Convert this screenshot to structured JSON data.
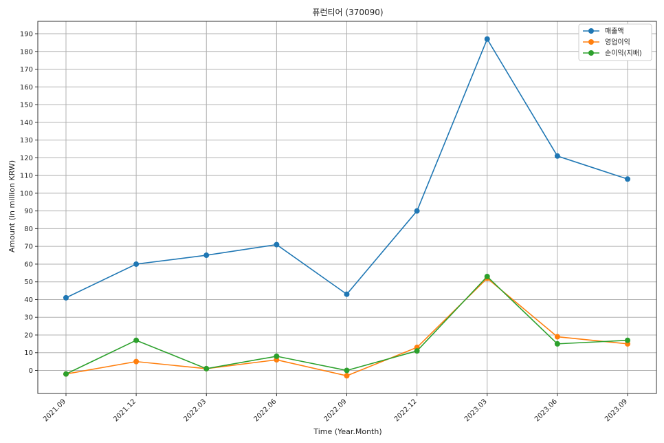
{
  "chart_data": {
    "type": "line",
    "title": "퓨런티어 (370090)",
    "xlabel": "Time (Year.Month)",
    "ylabel": "Amount (in million KRW)",
    "categories": [
      "2021.09",
      "2021.12",
      "2022.03",
      "2022.06",
      "2022.09",
      "2022.12",
      "2023.03",
      "2023.06",
      "2023.09"
    ],
    "ylim": [
      -13,
      197
    ],
    "yticks": [
      0,
      10,
      20,
      30,
      40,
      50,
      60,
      70,
      80,
      90,
      100,
      110,
      120,
      130,
      140,
      150,
      160,
      170,
      180,
      190
    ],
    "grid": true,
    "legend_position": "top-right",
    "series": [
      {
        "name": "매출액",
        "color": "#1f77b4",
        "values": [
          41,
          60,
          65,
          71,
          43,
          90,
          187,
          121,
          108
        ]
      },
      {
        "name": "영업이익",
        "color": "#ff7f0e",
        "values": [
          -2,
          5,
          1,
          6,
          -3,
          13,
          52,
          19,
          15
        ]
      },
      {
        "name": "순이익(지배)",
        "color": "#2ca02c",
        "values": [
          -2,
          17,
          1,
          8,
          0,
          11,
          53,
          15,
          17
        ]
      }
    ]
  }
}
